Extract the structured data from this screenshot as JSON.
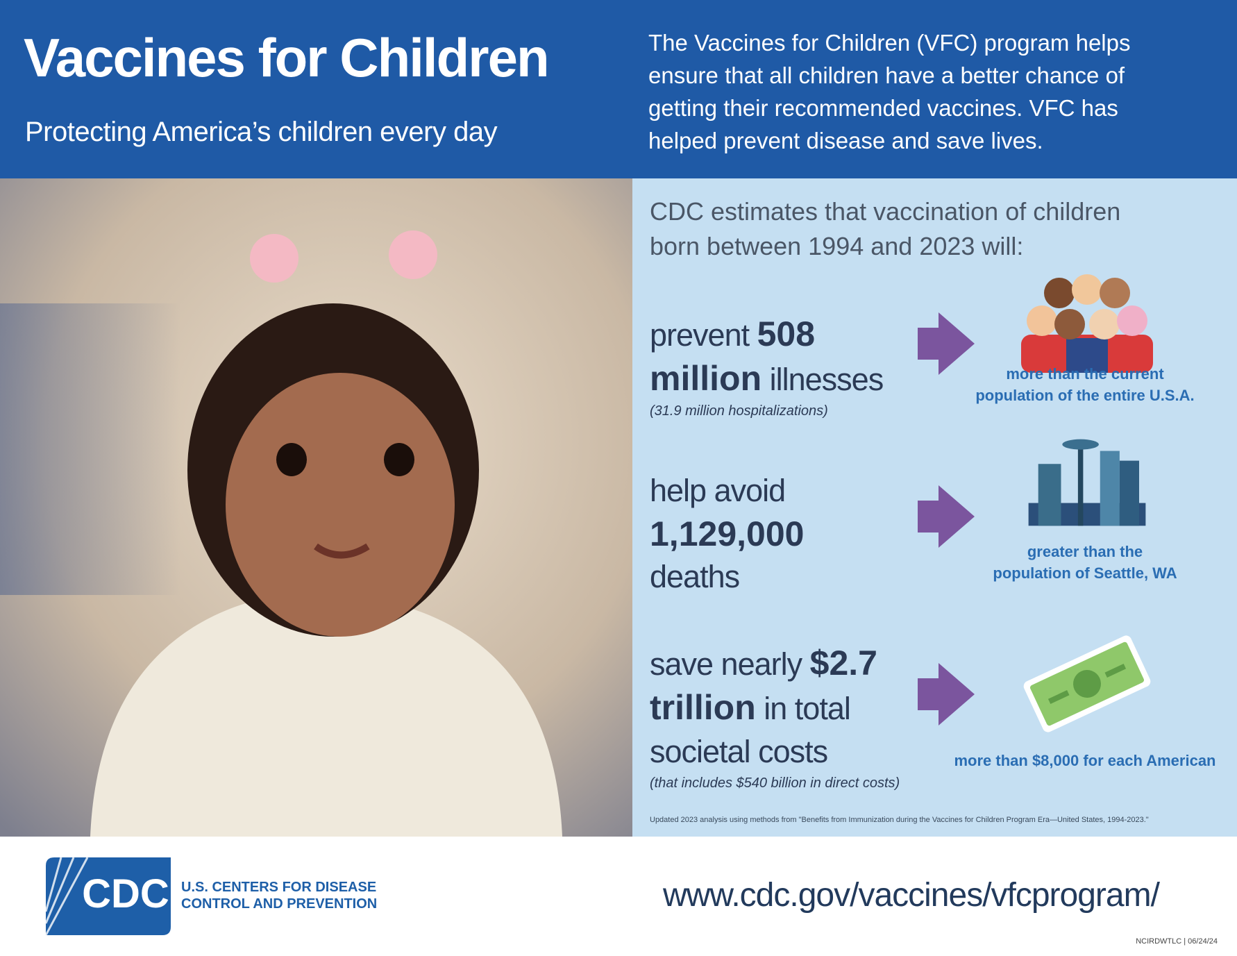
{
  "header": {
    "title": "Vaccines for Children",
    "subtitle": "Protecting America’s children every day",
    "description": [
      "The Vaccines for Children (VFC) program helps",
      "ensure that all children have a better chance of",
      "getting their recommended vaccines. VFC has",
      "helped prevent disease and save lives."
    ]
  },
  "stats": {
    "intro": [
      "CDC estimates that vaccination of children",
      "born between 1994 and 2023 will:"
    ],
    "items": [
      {
        "lead": "prevent",
        "figure": "508 million",
        "tail": "illnesses",
        "note": "(31.9 million hospitalizations)",
        "comparison": [
          "more than the current",
          "population of the entire U.S.A."
        ]
      },
      {
        "lead": "help avoid",
        "figure": "1,129,000",
        "tail": "deaths",
        "comparison": [
          "greater than the",
          "population of Seattle, WA"
        ]
      },
      {
        "lead": "save nearly",
        "figure": "$2.7 trillion",
        "tail": "in total societal costs",
        "note": "(that includes $540 billion in direct costs)",
        "comparison": [
          "more than $8,000 for each American"
        ]
      }
    ],
    "footnote": "Updated 2023 analysis using methods from \"Benefits from Immunization during the Vaccines for Children Program Era—United States, 1994-2023.\""
  },
  "footer": {
    "logo": "CDC",
    "organization": [
      "U.S. CENTERS FOR DISEASE",
      "CONTROL AND PREVENTION"
    ],
    "url": "www.cdc.gov/vaccines/vfcprogram/",
    "code": "NCIRDWTLC | 06/24/24"
  }
}
